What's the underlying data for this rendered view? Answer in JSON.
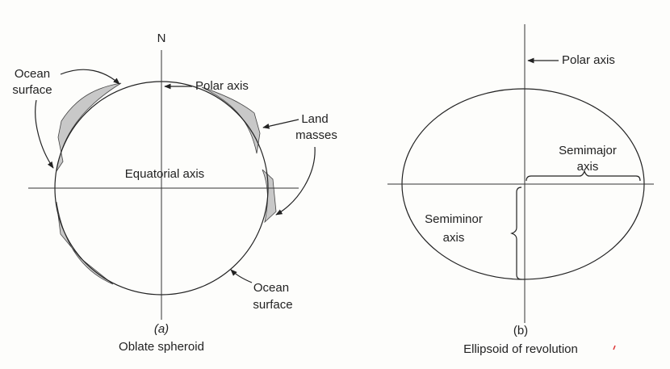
{
  "panel_a": {
    "north": "N",
    "polar_axis": "Polar axis",
    "ocean_top": [
      "Ocean",
      "surface"
    ],
    "land_masses": [
      "Land",
      "masses"
    ],
    "equatorial_axis": "Equatorial axis",
    "ocean_bottom": [
      "Ocean",
      "surface"
    ],
    "letter": "(a)",
    "caption": "Oblate spheroid"
  },
  "panel_b": {
    "polar_axis": "Polar axis",
    "semimajor": [
      "Semimajor",
      "axis"
    ],
    "semiminor": [
      "Semiminor",
      "axis"
    ],
    "letter": "(b)",
    "caption": "Ellipsoid of revolution"
  }
}
